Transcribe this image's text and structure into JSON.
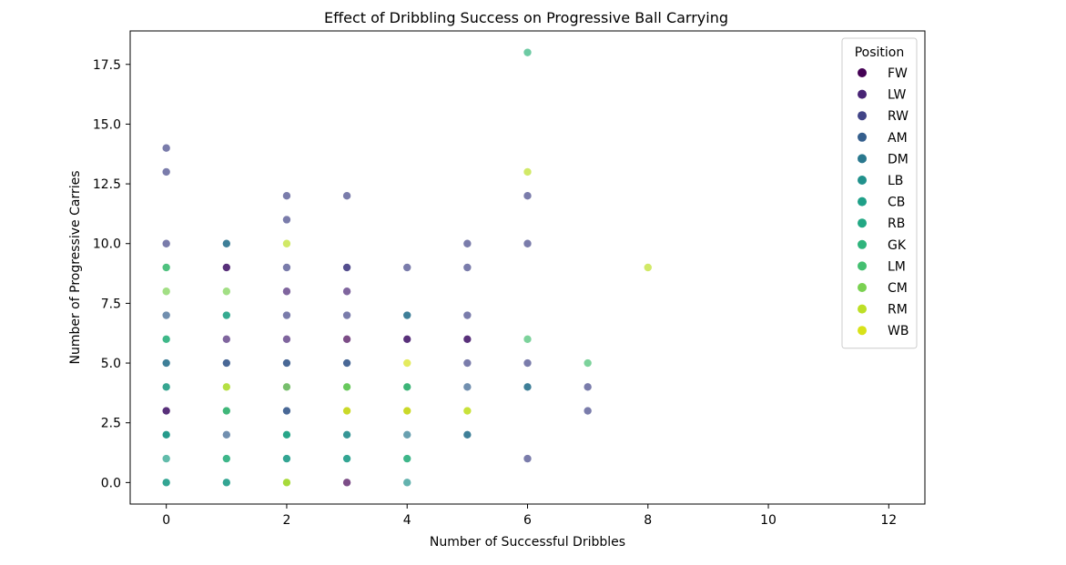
{
  "chart_data": {
    "type": "scatter",
    "title": "Effect of Dribbling Success on Progressive Ball Carrying",
    "xlabel": "Number of Successful Dribbles",
    "ylabel": "Number of Progressive Carries",
    "xlim": [
      -0.6,
      12.6
    ],
    "ylim": [
      -0.9,
      18.9
    ],
    "x_ticks": [
      0,
      2,
      4,
      6,
      8,
      10,
      12
    ],
    "x_tick_labels": [
      "0",
      "2",
      "4",
      "6",
      "8",
      "10",
      "12"
    ],
    "y_ticks": [
      0,
      2.5,
      5,
      7.5,
      10,
      12.5,
      15,
      17.5
    ],
    "y_tick_labels": [
      "0.0",
      "2.5",
      "5.0",
      "7.5",
      "10.0",
      "12.5",
      "15.0",
      "17.5"
    ],
    "grid": false,
    "legend": {
      "title": "Position",
      "placement": "top-right",
      "entries": [
        {
          "label": "FW",
          "color": "#440154"
        },
        {
          "label": "LW",
          "color": "#482475"
        },
        {
          "label": "RW",
          "color": "#414487"
        },
        {
          "label": "AM",
          "color": "#355f8d"
        },
        {
          "label": "DM",
          "color": "#2a788e"
        },
        {
          "label": "LB",
          "color": "#21918c"
        },
        {
          "label": "CB",
          "color": "#1fa088"
        },
        {
          "label": "RB",
          "color": "#22a884"
        },
        {
          "label": "GK",
          "color": "#2fb47c"
        },
        {
          "label": "LM",
          "color": "#44bf70"
        },
        {
          "label": "CM",
          "color": "#7ad151"
        },
        {
          "label": "RM",
          "color": "#bddf26"
        },
        {
          "label": "WB",
          "color": "#d8e219"
        }
      ]
    },
    "series": [
      {
        "name": "FW",
        "color": "#440154",
        "points": [
          [
            0,
            3
          ],
          [
            3,
            0
          ],
          [
            4,
            6
          ],
          [
            5,
            6
          ],
          [
            3,
            6
          ],
          [
            1,
            9
          ]
        ]
      },
      {
        "name": "LW",
        "color": "#482475",
        "points": [
          [
            1,
            9
          ],
          [
            2,
            8
          ],
          [
            3,
            8
          ],
          [
            4,
            6
          ],
          [
            5,
            6
          ],
          [
            2,
            6
          ],
          [
            1,
            6
          ],
          [
            3,
            9
          ],
          [
            0,
            3
          ]
        ]
      },
      {
        "name": "RW",
        "color": "#414487",
        "points": [
          [
            0,
            14
          ],
          [
            0,
            13
          ],
          [
            0,
            10
          ],
          [
            2,
            12
          ],
          [
            3,
            12
          ],
          [
            2,
            11
          ],
          [
            2,
            9
          ],
          [
            3,
            9
          ],
          [
            4,
            9
          ],
          [
            5,
            10
          ],
          [
            5,
            9
          ],
          [
            6,
            12
          ],
          [
            6,
            10
          ],
          [
            5,
            7
          ],
          [
            6,
            5
          ],
          [
            7,
            4
          ],
          [
            7,
            3
          ],
          [
            6,
            1
          ],
          [
            2,
            7
          ],
          [
            3,
            7
          ],
          [
            1,
            5
          ],
          [
            2,
            5
          ],
          [
            3,
            5
          ],
          [
            4,
            3
          ],
          [
            5,
            5
          ],
          [
            2,
            3
          ],
          [
            3,
            3
          ]
        ]
      },
      {
        "name": "AM",
        "color": "#355f8d",
        "points": [
          [
            0,
            7
          ],
          [
            0,
            5
          ],
          [
            1,
            10
          ],
          [
            1,
            5
          ],
          [
            1,
            2
          ],
          [
            2,
            5
          ],
          [
            2,
            4
          ],
          [
            2,
            3
          ],
          [
            3,
            5
          ],
          [
            3,
            4
          ],
          [
            4,
            4
          ],
          [
            5,
            4
          ],
          [
            6,
            4
          ],
          [
            5,
            2
          ],
          [
            4,
            7
          ],
          [
            0,
            2
          ]
        ]
      },
      {
        "name": "DM",
        "color": "#2a788e",
        "points": [
          [
            1,
            10
          ],
          [
            0,
            5
          ],
          [
            1,
            3
          ],
          [
            2,
            2
          ],
          [
            3,
            2
          ],
          [
            4,
            2
          ],
          [
            4,
            4
          ],
          [
            5,
            2
          ],
          [
            0,
            4
          ],
          [
            4,
            7
          ],
          [
            6,
            4
          ],
          [
            3,
            4
          ]
        ]
      },
      {
        "name": "LB",
        "color": "#21918c",
        "points": [
          [
            0,
            2
          ],
          [
            1,
            7
          ],
          [
            2,
            1
          ],
          [
            3,
            1
          ],
          [
            4,
            0
          ],
          [
            0,
            0
          ],
          [
            1,
            0
          ],
          [
            3,
            2
          ]
        ]
      },
      {
        "name": "CB",
        "color": "#1fa088",
        "points": [
          [
            0,
            1
          ],
          [
            0,
            0
          ],
          [
            1,
            1
          ],
          [
            1,
            0
          ],
          [
            2,
            1
          ],
          [
            2,
            0
          ],
          [
            4,
            1
          ],
          [
            3,
            1
          ],
          [
            0,
            2
          ],
          [
            2,
            2
          ]
        ]
      },
      {
        "name": "RB",
        "color": "#22a884",
        "points": [
          [
            0,
            6
          ],
          [
            0,
            4
          ],
          [
            1,
            3
          ],
          [
            2,
            2
          ],
          [
            4,
            4
          ],
          [
            3,
            4
          ],
          [
            1,
            7
          ]
        ]
      },
      {
        "name": "GK",
        "color": "#2fb47c",
        "points": [
          [
            0,
            9
          ],
          [
            6,
            18
          ],
          [
            0,
            6
          ],
          [
            1,
            1
          ],
          [
            4,
            1
          ]
        ]
      },
      {
        "name": "LM",
        "color": "#44bf70",
        "points": [
          [
            0,
            9
          ],
          [
            6,
            6
          ],
          [
            7,
            5
          ],
          [
            3,
            4
          ],
          [
            4,
            4
          ],
          [
            1,
            3
          ]
        ]
      },
      {
        "name": "CM",
        "color": "#7ad151",
        "points": [
          [
            0,
            8
          ],
          [
            1,
            8
          ],
          [
            2,
            0
          ],
          [
            1,
            4
          ],
          [
            2,
            4
          ],
          [
            5,
            3
          ],
          [
            3,
            4
          ]
        ]
      },
      {
        "name": "RM",
        "color": "#bddf26",
        "points": [
          [
            2,
            10
          ],
          [
            8,
            9
          ],
          [
            6,
            13
          ],
          [
            3,
            3
          ],
          [
            4,
            3
          ],
          [
            1,
            4
          ],
          [
            2,
            0
          ]
        ]
      },
      {
        "name": "WB",
        "color": "#d8e219",
        "points": [
          [
            4,
            5
          ],
          [
            4,
            3
          ],
          [
            3,
            3
          ],
          [
            5,
            3
          ]
        ]
      }
    ]
  }
}
